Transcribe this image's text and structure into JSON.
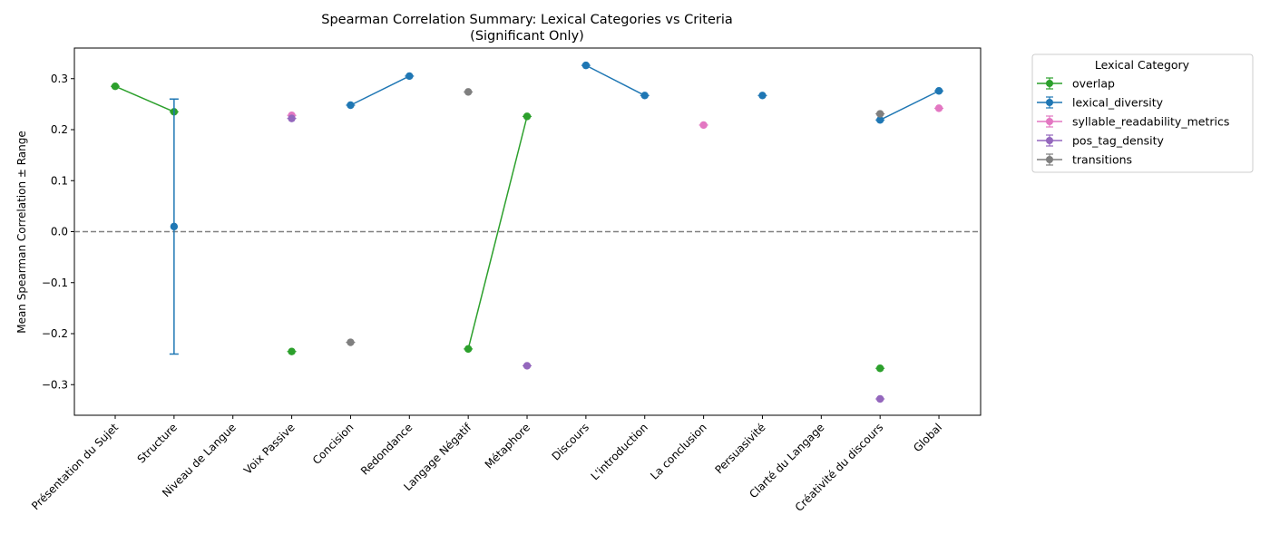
{
  "chart_data": {
    "type": "line",
    "title": "Spearman Correlation Summary: Lexical Categories vs Criteria",
    "subtitle": "(Significant Only)",
    "xlabel": "",
    "ylabel": "Mean Spearman Correlation ± Range",
    "ylim": [
      -0.36,
      0.36
    ],
    "yticks": [
      -0.3,
      -0.2,
      -0.1,
      0.0,
      0.1,
      0.2,
      0.3
    ],
    "ytick_labels": [
      "−0.3",
      "−0.2",
      "−0.1",
      "0.0",
      "0.1",
      "0.2",
      "0.3"
    ],
    "grid": false,
    "reference_line": 0,
    "legend_placement": "outside-right",
    "categories": [
      "Présentation du Sujet",
      "Structure",
      "Niveau de Langue",
      "Voix Passive",
      "Concision",
      "Redondance",
      "Langage Négatif",
      "Métaphore",
      "Discours",
      "L'introduction",
      "La conclusion",
      "Persuasivité",
      "Clarté du Langage",
      "Créativité du discours",
      "Global"
    ],
    "legend_title": "Lexical Category",
    "series": [
      {
        "name": "overlap",
        "color": "#2ca02c",
        "values": [
          0.285,
          0.235,
          null,
          null,
          null,
          null,
          -0.23,
          0.226,
          null,
          null,
          null,
          null,
          null,
          null,
          null
        ],
        "ranges": [
          0.003,
          0.004,
          null,
          null,
          null,
          null,
          0.004,
          0.004,
          null,
          null,
          null,
          null,
          null,
          null,
          null
        ],
        "extra_points": [
          {
            "x": 3,
            "y": -0.235,
            "range": 0.003
          },
          {
            "x": 13,
            "y": -0.268,
            "range": 0.003
          }
        ]
      },
      {
        "name": "lexical_diversity",
        "color": "#1f77b4",
        "values": [
          null,
          0.01,
          null,
          null,
          0.248,
          0.305,
          null,
          null,
          0.326,
          0.267,
          null,
          0.267,
          null,
          0.219,
          0.276
        ],
        "ranges": [
          null,
          0.25,
          null,
          null,
          0.003,
          0.003,
          null,
          null,
          0.003,
          0.003,
          null,
          0.003,
          null,
          0.003,
          0.003
        ],
        "extra_points": []
      },
      {
        "name": "syllable_readability_metrics",
        "color": "#e377c2",
        "values": [
          null,
          null,
          null,
          0.228,
          null,
          null,
          null,
          null,
          null,
          null,
          0.209,
          null,
          null,
          null,
          0.242
        ],
        "ranges": [
          null,
          null,
          null,
          0.003,
          null,
          null,
          null,
          null,
          null,
          null,
          0.003,
          null,
          null,
          null,
          0.003
        ],
        "extra_points": []
      },
      {
        "name": "pos_tag_density",
        "color": "#9467bd",
        "values": [
          null,
          null,
          null,
          0.222,
          null,
          null,
          null,
          -0.263,
          null,
          null,
          null,
          null,
          null,
          -0.328,
          null
        ],
        "ranges": [
          null,
          null,
          null,
          0.003,
          null,
          null,
          null,
          0.003,
          null,
          null,
          null,
          null,
          null,
          0.003,
          null
        ],
        "extra_points": []
      },
      {
        "name": "transitions",
        "color": "#7f7f7f",
        "values": [
          null,
          null,
          null,
          null,
          -0.217,
          null,
          0.274,
          null,
          null,
          null,
          null,
          null,
          null,
          0.231,
          null
        ],
        "ranges": [
          null,
          null,
          null,
          null,
          0.003,
          null,
          0.003,
          null,
          null,
          null,
          null,
          null,
          null,
          0.003,
          null
        ],
        "extra_points": []
      }
    ]
  }
}
